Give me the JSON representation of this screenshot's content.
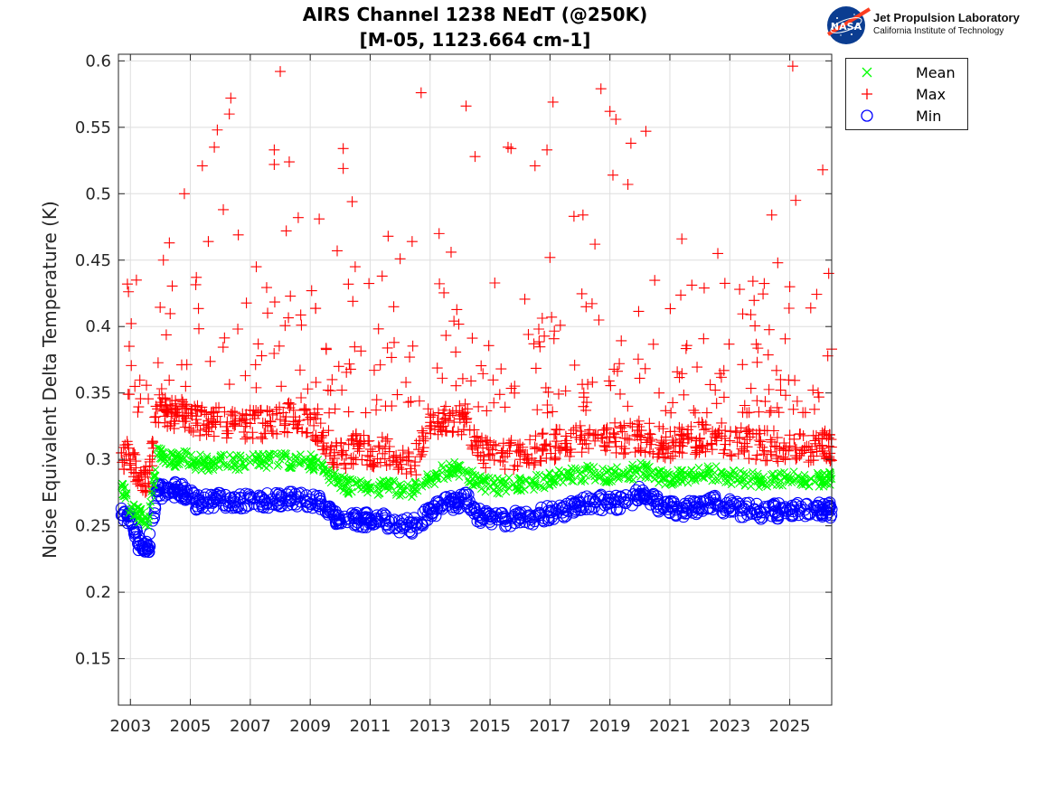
{
  "chart_data": {
    "type": "scatter",
    "title": "AIRS Channel 1238 NEdT (@250K)",
    "subtitle": "[M-05, 1123.664 cm-1]",
    "xlabel": "",
    "ylabel": "Noise Equivalent Delta Temperature (K)",
    "xlim": [
      2002.6,
      2026.4
    ],
    "ylim": [
      0.115,
      0.605
    ],
    "xticks": [
      2003,
      2005,
      2007,
      2009,
      2011,
      2013,
      2015,
      2017,
      2019,
      2021,
      2023,
      2025
    ],
    "xtick_labels": [
      "2003",
      "2005",
      "2007",
      "2009",
      "2011",
      "2013",
      "2015",
      "2017",
      "2019",
      "2021",
      "2023",
      "2025"
    ],
    "yticks": [
      0.15,
      0.2,
      0.25,
      0.3,
      0.35,
      0.4,
      0.45,
      0.5,
      0.55,
      0.6
    ],
    "ytick_labels": [
      "0.15",
      "0.2",
      "0.25",
      "0.3",
      "0.35",
      "0.4",
      "0.45",
      "0.5",
      "0.55",
      "0.6"
    ],
    "grid": true,
    "legend_position": "outside-top-right",
    "series": [
      {
        "name": "Mean",
        "marker": "x",
        "color": "#00ff00",
        "x": [
          2002.7,
          2003.0,
          2003.3,
          2003.6,
          2003.9,
          2004.2,
          2004.5,
          2004.8,
          2005.2,
          2005.6,
          2006.0,
          2006.5,
          2007.0,
          2007.5,
          2008.0,
          2008.5,
          2009.0,
          2009.4,
          2009.8,
          2010.2,
          2010.6,
          2011.0,
          2011.5,
          2012.0,
          2012.5,
          2013.0,
          2013.4,
          2013.8,
          2014.2,
          2014.6,
          2015.0,
          2015.5,
          2016.0,
          2016.5,
          2017.0,
          2017.5,
          2018.0,
          2018.5,
          2019.0,
          2019.5,
          2020.0,
          2020.4,
          2020.8,
          2021.2,
          2021.6,
          2022.0,
          2022.5,
          2023.0,
          2023.5,
          2024.0,
          2024.5,
          2025.0,
          2025.5,
          2026.0,
          2026.3
        ],
        "y": [
          0.28,
          0.262,
          0.258,
          0.255,
          0.303,
          0.302,
          0.3,
          0.301,
          0.298,
          0.297,
          0.299,
          0.297,
          0.298,
          0.298,
          0.3,
          0.299,
          0.298,
          0.296,
          0.285,
          0.28,
          0.279,
          0.278,
          0.279,
          0.278,
          0.277,
          0.285,
          0.29,
          0.293,
          0.29,
          0.282,
          0.28,
          0.28,
          0.281,
          0.283,
          0.285,
          0.287,
          0.289,
          0.29,
          0.288,
          0.289,
          0.292,
          0.29,
          0.286,
          0.287,
          0.288,
          0.288,
          0.29,
          0.286,
          0.285,
          0.285,
          0.285,
          0.285,
          0.285,
          0.285,
          0.285
        ]
      },
      {
        "name": "Max",
        "marker": "+",
        "color": "#ff0000",
        "x": [
          2002.7,
          2003.0,
          2003.3,
          2003.6,
          2003.9,
          2004.2,
          2004.5,
          2004.8,
          2005.2,
          2005.6,
          2006.0,
          2006.5,
          2007.0,
          2007.5,
          2008.0,
          2008.5,
          2009.0,
          2009.4,
          2009.8,
          2010.2,
          2010.6,
          2011.0,
          2011.5,
          2012.0,
          2012.5,
          2013.0,
          2013.4,
          2013.8,
          2014.2,
          2014.6,
          2015.0,
          2015.5,
          2016.0,
          2016.5,
          2017.0,
          2017.5,
          2018.0,
          2018.5,
          2019.0,
          2019.5,
          2020.0,
          2020.4,
          2020.8,
          2021.2,
          2021.6,
          2022.0,
          2022.5,
          2023.0,
          2023.5,
          2024.0,
          2024.5,
          2025.0,
          2025.5,
          2026.0,
          2026.3
        ],
        "y": [
          0.305,
          0.3,
          0.285,
          0.282,
          0.338,
          0.336,
          0.335,
          0.333,
          0.33,
          0.329,
          0.328,
          0.326,
          0.327,
          0.327,
          0.33,
          0.332,
          0.33,
          0.318,
          0.305,
          0.303,
          0.31,
          0.302,
          0.308,
          0.3,
          0.298,
          0.325,
          0.328,
          0.328,
          0.33,
          0.305,
          0.303,
          0.302,
          0.305,
          0.308,
          0.31,
          0.312,
          0.315,
          0.318,
          0.317,
          0.316,
          0.318,
          0.315,
          0.312,
          0.313,
          0.315,
          0.316,
          0.317,
          0.314,
          0.312,
          0.311,
          0.31,
          0.31,
          0.309,
          0.31,
          0.31
        ],
        "outliers": [
          [
            2002.9,
            0.432
          ],
          [
            2003.2,
            0.435
          ],
          [
            2004.1,
            0.45
          ],
          [
            2004.3,
            0.463
          ],
          [
            2004.8,
            0.5
          ],
          [
            2005.2,
            0.437
          ],
          [
            2005.4,
            0.521
          ],
          [
            2005.6,
            0.464
          ],
          [
            2005.8,
            0.535
          ],
          [
            2005.9,
            0.548
          ],
          [
            2006.1,
            0.488
          ],
          [
            2006.3,
            0.56
          ],
          [
            2006.35,
            0.572
          ],
          [
            2006.6,
            0.469
          ],
          [
            2007.2,
            0.445
          ],
          [
            2007.8,
            0.533
          ],
          [
            2007.8,
            0.522
          ],
          [
            2008.0,
            0.592
          ],
          [
            2008.3,
            0.524
          ],
          [
            2008.2,
            0.472
          ],
          [
            2008.6,
            0.482
          ],
          [
            2009.3,
            0.481
          ],
          [
            2009.9,
            0.457
          ],
          [
            2010.1,
            0.534
          ],
          [
            2010.1,
            0.519
          ],
          [
            2010.4,
            0.494
          ],
          [
            2010.5,
            0.445
          ],
          [
            2011.4,
            0.438
          ],
          [
            2011.6,
            0.468
          ],
          [
            2012.0,
            0.451
          ],
          [
            2012.4,
            0.464
          ],
          [
            2012.7,
            0.576
          ],
          [
            2013.3,
            0.47
          ],
          [
            2013.7,
            0.456
          ],
          [
            2014.2,
            0.566
          ],
          [
            2014.5,
            0.528
          ],
          [
            2015.6,
            0.535
          ],
          [
            2015.7,
            0.534
          ],
          [
            2016.5,
            0.521
          ],
          [
            2016.9,
            0.533
          ],
          [
            2017.1,
            0.569
          ],
          [
            2017.0,
            0.452
          ],
          [
            2017.8,
            0.483
          ],
          [
            2018.1,
            0.484
          ],
          [
            2018.5,
            0.462
          ],
          [
            2018.7,
            0.579
          ],
          [
            2019.0,
            0.562
          ],
          [
            2019.1,
            0.514
          ],
          [
            2019.2,
            0.556
          ],
          [
            2019.6,
            0.507
          ],
          [
            2019.7,
            0.538
          ],
          [
            2020.2,
            0.547
          ],
          [
            2021.4,
            0.466
          ],
          [
            2022.6,
            0.455
          ],
          [
            2024.4,
            0.484
          ],
          [
            2024.6,
            0.448
          ],
          [
            2025.0,
            0.43
          ],
          [
            2025.1,
            0.596
          ],
          [
            2025.2,
            0.495
          ],
          [
            2025.7,
            0.414
          ],
          [
            2026.1,
            0.518
          ],
          [
            2026.3,
            0.44
          ],
          [
            2026.4,
            0.383
          ]
        ]
      },
      {
        "name": "Min",
        "marker": "o",
        "color": "#0000ff",
        "x": [
          2002.7,
          2003.0,
          2003.3,
          2003.6,
          2003.9,
          2004.2,
          2004.5,
          2004.8,
          2005.2,
          2005.6,
          2006.0,
          2006.5,
          2007.0,
          2007.5,
          2008.0,
          2008.5,
          2009.0,
          2009.4,
          2009.8,
          2010.2,
          2010.6,
          2011.0,
          2011.5,
          2012.0,
          2012.5,
          2013.0,
          2013.4,
          2013.8,
          2014.2,
          2014.6,
          2015.0,
          2015.5,
          2016.0,
          2016.5,
          2017.0,
          2017.5,
          2018.0,
          2018.5,
          2019.0,
          2019.5,
          2020.0,
          2020.4,
          2020.8,
          2021.2,
          2021.6,
          2022.0,
          2022.5,
          2023.0,
          2023.5,
          2024.0,
          2024.5,
          2025.0,
          2025.5,
          2026.0,
          2026.3
        ],
        "y": [
          0.258,
          0.257,
          0.235,
          0.233,
          0.276,
          0.276,
          0.277,
          0.276,
          0.268,
          0.268,
          0.269,
          0.268,
          0.27,
          0.269,
          0.27,
          0.27,
          0.27,
          0.266,
          0.257,
          0.255,
          0.255,
          0.254,
          0.254,
          0.25,
          0.25,
          0.262,
          0.265,
          0.268,
          0.27,
          0.258,
          0.257,
          0.255,
          0.256,
          0.257,
          0.26,
          0.262,
          0.265,
          0.268,
          0.267,
          0.268,
          0.274,
          0.27,
          0.264,
          0.262,
          0.263,
          0.264,
          0.267,
          0.264,
          0.262,
          0.261,
          0.261,
          0.262,
          0.262,
          0.262,
          0.262
        ]
      }
    ]
  },
  "logo": {
    "emblem": "NASA",
    "org": "Jet Propulsion Laboratory",
    "institution": "California Institute of Technology"
  }
}
